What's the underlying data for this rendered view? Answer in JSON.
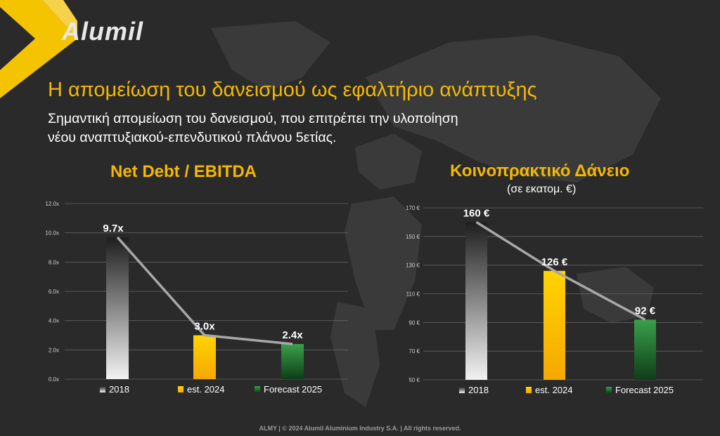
{
  "logo": {
    "text": "Alumil"
  },
  "title": "Η απομείωση του δανεισμού ως εφαλτήριο ανάπτυξης",
  "subtitle_lines": [
    "Σημαντική απομείωση του δανεισμού, που επιτρέπει την υλοποίηση",
    "νέου αναπτυξιακού-επενδυτικού πλάνου 5ετίας."
  ],
  "footer": "ALMY | © 2024 Alumil Aluminium Industry S.A. | All rights reserved.",
  "colors": {
    "accent": "#f5b800",
    "green": "#2e8b3e",
    "background": "#2a2a2a"
  },
  "chart_data": [
    {
      "type": "bar",
      "title": "Net Debt / EBITDA",
      "subtitle": "",
      "categories": [
        "2018",
        "est. 2024",
        "Forecast 2025"
      ],
      "values": [
        9.7,
        3.0,
        2.4
      ],
      "data_labels": [
        "9.7x",
        "3.0x",
        "2.4x"
      ],
      "yticks": [
        "0.0x",
        "2.0x",
        "4.0x",
        "6.0x",
        "8.0x",
        "10.0x",
        "12.0x"
      ],
      "ylim": [
        0,
        12
      ],
      "trend_line": true,
      "legend_position": "bottom",
      "grid": true
    },
    {
      "type": "bar",
      "title": "Κοινοπρακτικό Δάνειο",
      "subtitle": "(σε εκατομ. €)",
      "categories": [
        "2018",
        "est. 2024",
        "Forecast 2025"
      ],
      "values": [
        160,
        126,
        92
      ],
      "data_labels": [
        "160 €",
        "126 €",
        "92 €"
      ],
      "yticks": [
        "50 €",
        "70 €",
        "90 €",
        "110 €",
        "130 €",
        "150 €",
        "170 €"
      ],
      "ylim": [
        50,
        170
      ],
      "trend_line": true,
      "legend_position": "bottom",
      "grid": true
    }
  ]
}
